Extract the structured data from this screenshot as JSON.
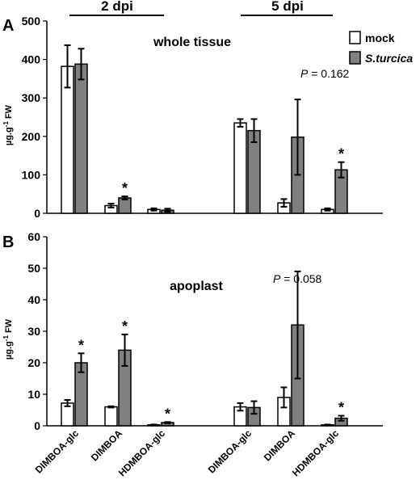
{
  "panel_labels": [
    "A",
    "B"
  ],
  "group_labels": [
    "2 dpi",
    "5 dpi"
  ],
  "legend": [
    {
      "label": "mock",
      "color": "#ffffff"
    },
    {
      "label": "S.turcica",
      "color": "#808080"
    }
  ],
  "colors": {
    "mock": "#ffffff",
    "treated": "#808080",
    "stroke": "#000000"
  },
  "chart_data": [
    {
      "type": "bar",
      "panel": "A",
      "title": "whole tissue",
      "ylabel": "µg.g-1 FW",
      "ylim": [
        0,
        500
      ],
      "yticks": [
        0,
        100,
        200,
        300,
        400,
        500
      ],
      "categories": [
        "DIMBOA-glc",
        "DIMBOA",
        "HDMBOA-glc",
        "DIMBOA-glc",
        "DIMBOA",
        "HDMBOA-glc"
      ],
      "groups": [
        "2 dpi",
        "2 dpi",
        "2 dpi",
        "5 dpi",
        "5 dpi",
        "5 dpi"
      ],
      "series": [
        {
          "name": "mock",
          "values": [
            382,
            20,
            10,
            235,
            27,
            10
          ],
          "errors": [
            55,
            5,
            3,
            10,
            10,
            3
          ]
        },
        {
          "name": "S.turcica",
          "values": [
            388,
            40,
            8,
            215,
            198,
            113
          ],
          "errors": [
            40,
            4,
            4,
            30,
            98,
            20
          ]
        }
      ],
      "significance": [
        "",
        "*",
        "",
        "",
        "",
        "*"
      ],
      "annotation": {
        "italic": "P",
        "text": " = 0.162"
      }
    },
    {
      "type": "bar",
      "panel": "B",
      "title": "apoplast",
      "ylabel": "µg.g-1 FW",
      "ylim": [
        0,
        60
      ],
      "yticks": [
        0,
        10,
        20,
        30,
        40,
        50,
        60
      ],
      "categories": [
        "DIMBOA-glc",
        "DIMBOA",
        "HDMBOA-glc",
        "DIMBOA-glc",
        "DIMBOA",
        "HDMBOA-glc"
      ],
      "groups": [
        "2 dpi",
        "2 dpi",
        "2 dpi",
        "5 dpi",
        "5 dpi",
        "5 dpi"
      ],
      "series": [
        {
          "name": "mock",
          "values": [
            7.2,
            6.0,
            0.3,
            6.0,
            9.0,
            0.3
          ],
          "errors": [
            1.0,
            0.2,
            0.1,
            1.2,
            3.2,
            0.1
          ]
        },
        {
          "name": "S.turcica",
          "values": [
            20.0,
            24.0,
            1.0,
            5.8,
            32.0,
            2.4
          ],
          "errors": [
            3.0,
            5.0,
            0.2,
            2.0,
            17.0,
            0.8
          ]
        }
      ],
      "significance": [
        "*",
        "*",
        "*",
        "",
        "",
        "*"
      ],
      "annotation": {
        "italic": "P",
        "text": " = 0.058"
      }
    }
  ]
}
